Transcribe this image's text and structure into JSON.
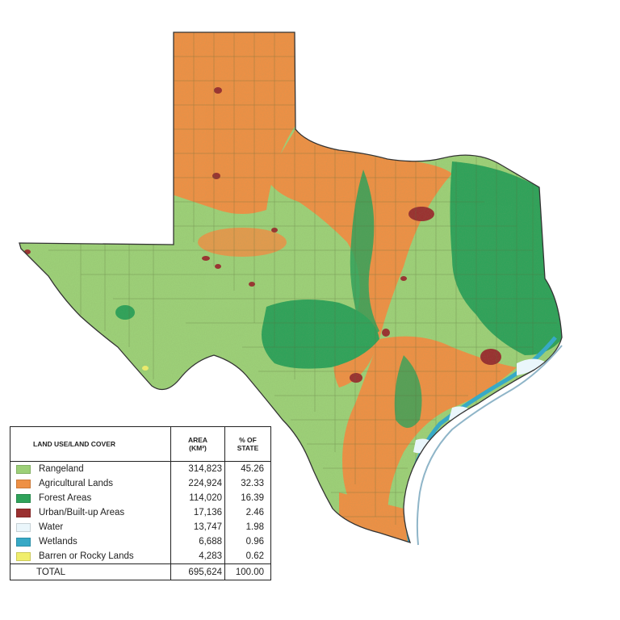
{
  "legend": {
    "header_category": "LAND USE/LAND COVER",
    "header_area_line1": "AREA",
    "header_area_line2": "(km²)",
    "header_pct_line1": "% OF",
    "header_pct_line2": "STATE",
    "rows": [
      {
        "label": "Rangeland",
        "area": "314,823",
        "pct": "45.26",
        "color": "#9dd078"
      },
      {
        "label": "Agricultural Lands",
        "area": "224,924",
        "pct": "32.33",
        "color": "#ee9045"
      },
      {
        "label": "Forest Areas",
        "area": "114,020",
        "pct": "16.39",
        "color": "#2fa25a"
      },
      {
        "label": "Urban/Built-up Areas",
        "area": "17,136",
        "pct": "2.46",
        "color": "#9a3030"
      },
      {
        "label": "Water",
        "area": "13,747",
        "pct": "1.98",
        "color": "#eaf6fb"
      },
      {
        "label": "Wetlands",
        "area": "6,688",
        "pct": "0.96",
        "color": "#37a9c6"
      },
      {
        "label": "Barren or Rocky Lands",
        "area": "4,283",
        "pct": "0.62",
        "color": "#f0ee6c"
      }
    ],
    "total_label": "TOTAL",
    "total_area": "695,624",
    "total_pct": "100.00"
  }
}
